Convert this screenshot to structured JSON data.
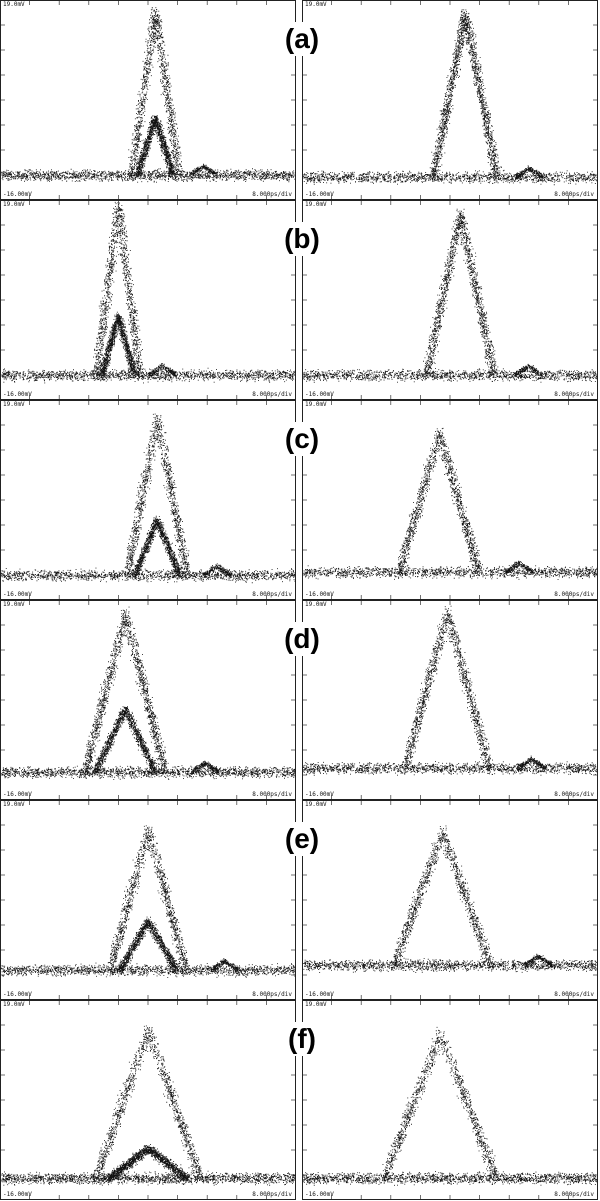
{
  "panel_text": {
    "top_left": "19.0mV",
    "bottom_left": "-16.00mV",
    "bottom_right": "8.000ps/div"
  },
  "rows": [
    {
      "label": "(a)"
    },
    {
      "label": "(b)"
    },
    {
      "label": "(c)"
    },
    {
      "label": "(d)"
    },
    {
      "label": "(e)"
    },
    {
      "label": "(f)"
    }
  ]
}
